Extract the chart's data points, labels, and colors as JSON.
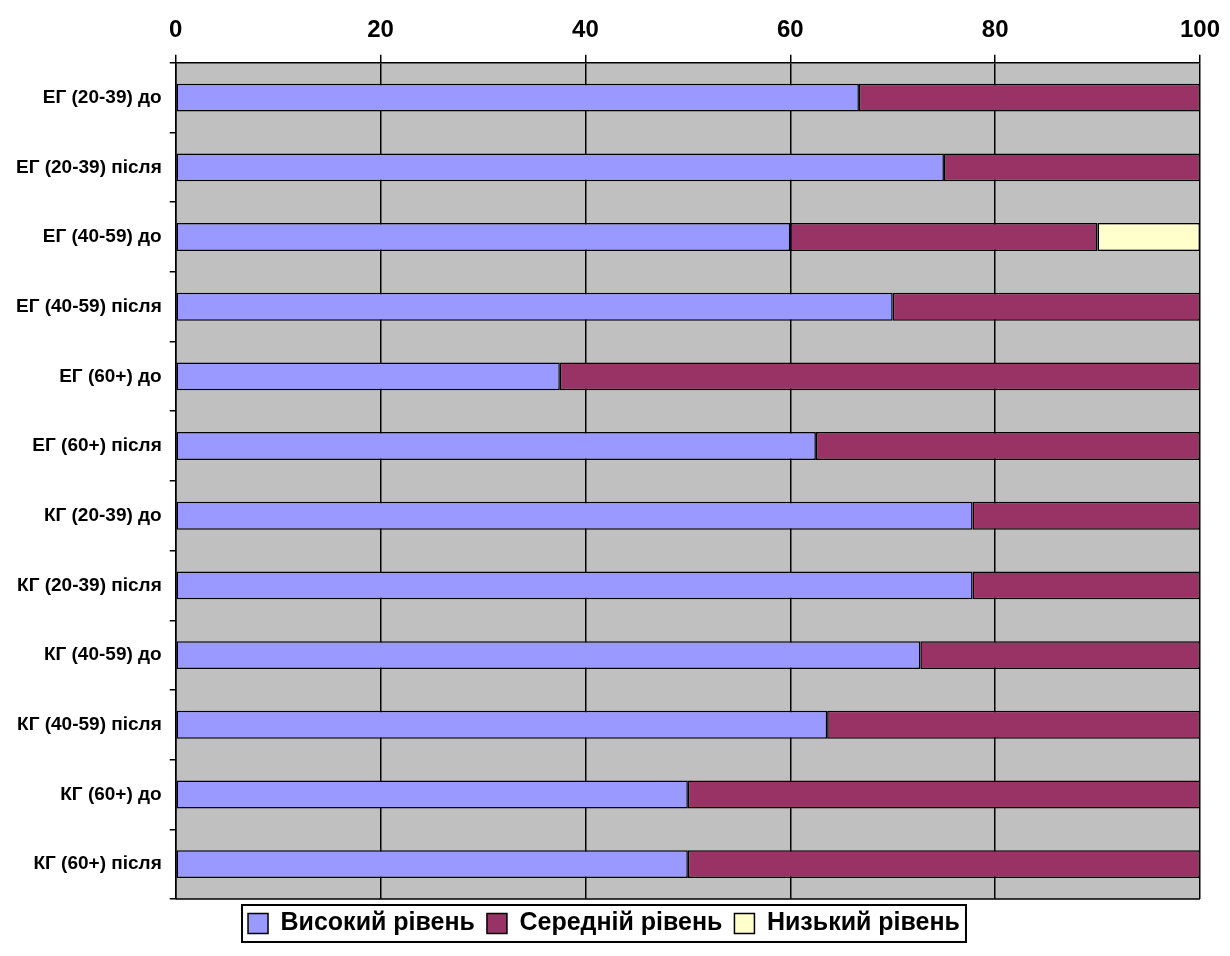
{
  "chart_data": {
    "type": "bar",
    "orientation": "horizontal",
    "stacked": true,
    "categories": [
      "ЕГ (20-39) до",
      "ЕГ (20-39) після",
      "ЕГ (40-59) до",
      "ЕГ (40-59) після",
      "ЕГ (60+) до",
      "ЕГ (60+) після",
      "КГ (20-39) до",
      "КГ (20-39) після",
      "КГ (40-59) до",
      "КГ (40-59) після",
      "КГ (60+) до",
      "КГ (60+) після"
    ],
    "series": [
      {
        "name": "Високий рівень",
        "color": "#9999ff",
        "values": [
          66.7,
          75,
          60,
          70,
          37.5,
          62.5,
          77.8,
          77.8,
          72.7,
          63.6,
          50,
          50
        ]
      },
      {
        "name": "Середній рівень",
        "color": "#993366",
        "values": [
          33.3,
          25,
          30,
          30,
          62.5,
          37.5,
          22.2,
          22.2,
          27.3,
          36.4,
          50,
          50
        ]
      },
      {
        "name": "Низький рівень",
        "color": "#ffffcc",
        "values": [
          0,
          0,
          10,
          0,
          0,
          0,
          0,
          0,
          0,
          0,
          0,
          0
        ]
      }
    ],
    "xlim": [
      0,
      100
    ],
    "xticks": [
      0,
      20,
      40,
      60,
      80,
      100
    ],
    "grid": "x",
    "legend": "bottom"
  }
}
